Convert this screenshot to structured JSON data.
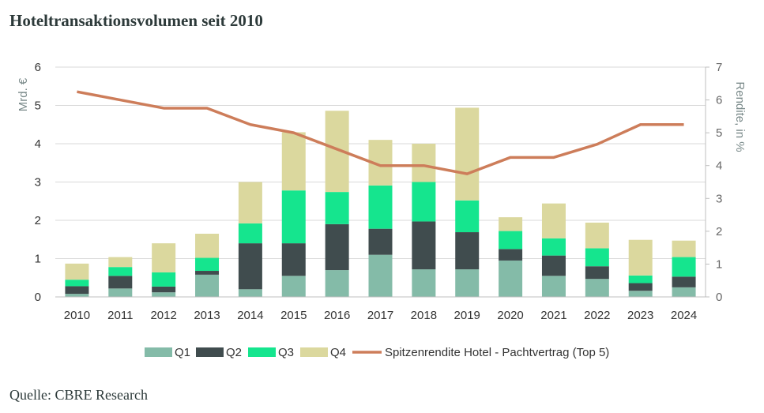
{
  "title": "Hoteltransaktionsvolumen seit 2010",
  "source": "Quelle: CBRE Research",
  "chart_data": {
    "type": "bar",
    "stacked": true,
    "categories": [
      "2010",
      "2011",
      "2012",
      "2013",
      "2014",
      "2015",
      "2016",
      "2017",
      "2018",
      "2019",
      "2020",
      "2021",
      "2022",
      "2023",
      "2024"
    ],
    "series": [
      {
        "name": "Q1",
        "color": "#84bba8",
        "values": [
          0.08,
          0.22,
          0.12,
          0.58,
          0.2,
          0.55,
          0.7,
          1.1,
          0.72,
          0.72,
          0.95,
          0.55,
          0.47,
          0.16,
          0.25
        ]
      },
      {
        "name": "Q2",
        "color": "#404c4e",
        "values": [
          0.2,
          0.33,
          0.15,
          0.1,
          1.2,
          0.85,
          1.2,
          0.68,
          1.25,
          0.97,
          0.3,
          0.53,
          0.33,
          0.2,
          0.28
        ]
      },
      {
        "name": "Q3",
        "color": "#15e58e",
        "values": [
          0.17,
          0.23,
          0.37,
          0.34,
          0.52,
          1.38,
          0.84,
          1.13,
          1.03,
          0.83,
          0.47,
          0.45,
          0.47,
          0.2,
          0.51
        ]
      },
      {
        "name": "Q4",
        "color": "#dbd89e",
        "values": [
          0.42,
          0.26,
          0.76,
          0.63,
          1.08,
          1.52,
          2.12,
          1.19,
          1.0,
          2.42,
          0.36,
          0.91,
          0.67,
          0.93,
          0.43
        ]
      }
    ],
    "line": {
      "name": "Spitzenrendite Hotel - Pachtvertrag (Top 5)",
      "color": "#cd7d5a",
      "axis": "right",
      "values": [
        6.25,
        6.0,
        5.75,
        5.75,
        5.25,
        5.0,
        4.5,
        4.0,
        4.0,
        3.75,
        4.25,
        4.25,
        4.65,
        5.25,
        5.25
      ]
    },
    "ylabel": "Mrd. €",
    "ylim": [
      0,
      6
    ],
    "yticks": [
      "0",
      "1",
      "2",
      "3",
      "4",
      "5",
      "6"
    ],
    "y2label": "Rendite, in %",
    "y2lim": [
      0,
      7
    ],
    "y2ticks": [
      "0",
      "1",
      "2",
      "3",
      "4",
      "5",
      "6",
      "7"
    ],
    "grid": "horizontal",
    "legend": "bottom"
  }
}
